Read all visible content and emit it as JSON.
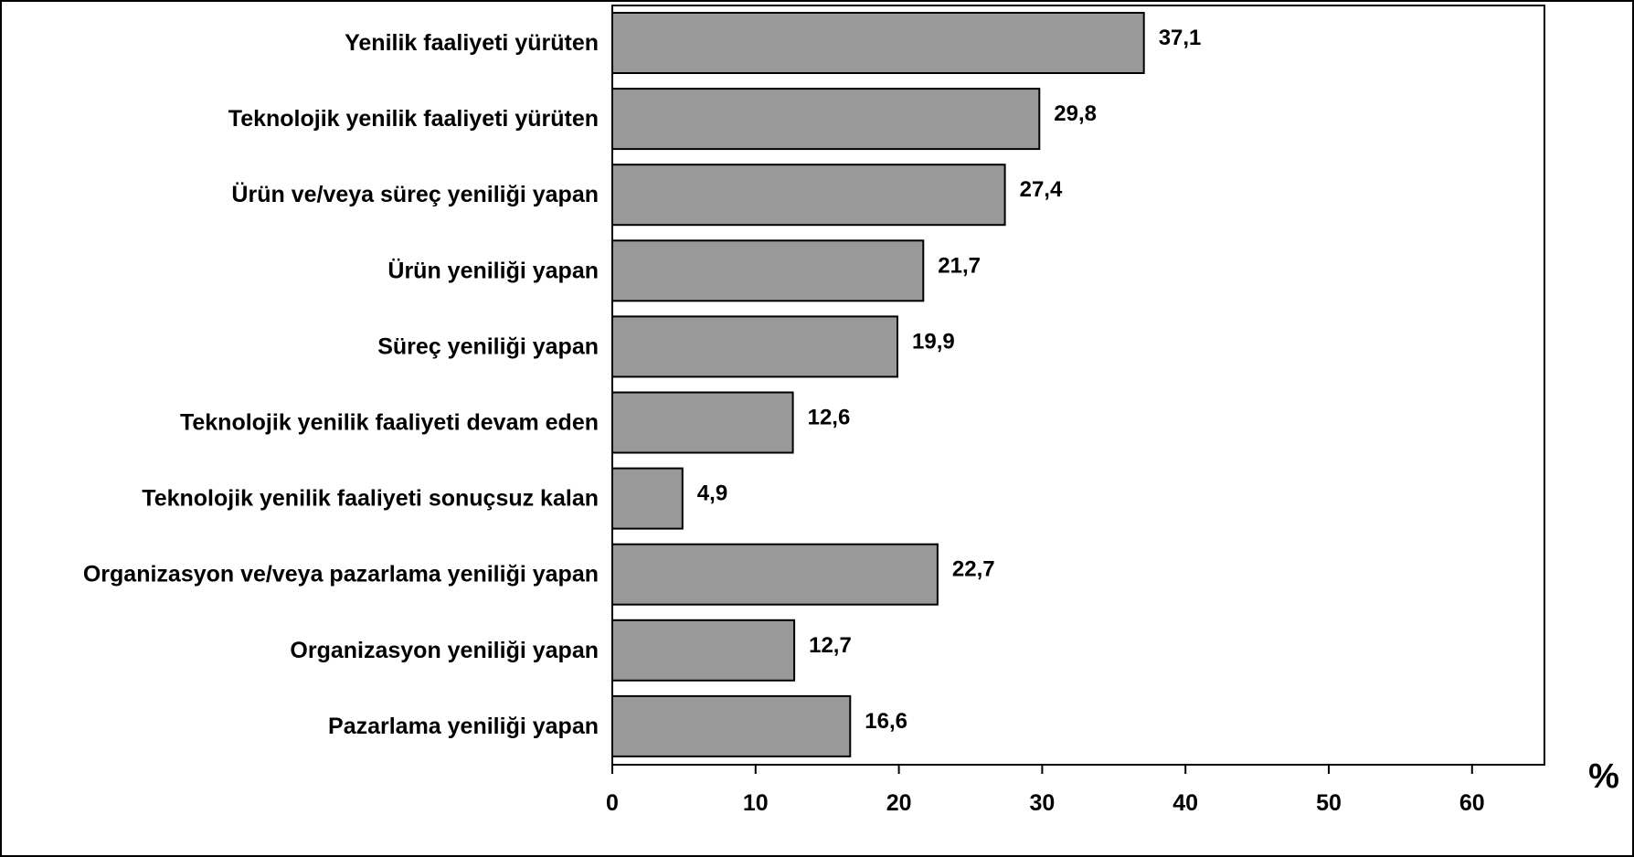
{
  "chart_data": {
    "type": "bar",
    "orientation": "horizontal",
    "categories": [
      "Yenilik faaliyeti yürüten",
      "Teknolojik yenilik faaliyeti yürüten",
      "Ürün ve/veya süreç yeniliği yapan",
      "Ürün yeniliği yapan",
      "Süreç yeniliği yapan",
      "Teknolojik yenilik faaliyeti devam eden",
      "Teknolojik yenilik faaliyeti sonuçsuz kalan",
      "Organizasyon ve/veya pazarlama yeniliği yapan",
      "Organizasyon yeniliği yapan",
      "Pazarlama yeniliği yapan"
    ],
    "values": [
      37.1,
      29.8,
      27.4,
      21.7,
      19.9,
      12.6,
      4.9,
      22.7,
      12.7,
      16.6
    ],
    "value_labels": [
      "37,1",
      "29,8",
      "27,4",
      "21,7",
      "19,9",
      "12,6",
      "4,9",
      "22,7",
      "12,7",
      "16,6"
    ],
    "xlabel": "%",
    "xlim": [
      0,
      65
    ],
    "xticks": [
      0,
      10,
      20,
      30,
      40,
      50,
      60
    ],
    "grid": false,
    "bar_color": "#999999",
    "bar_edge_color": "#000000"
  }
}
